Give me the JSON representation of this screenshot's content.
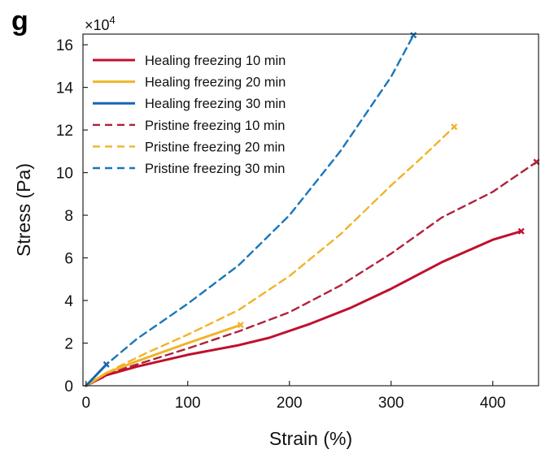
{
  "panel_label": "g",
  "chart_data": {
    "type": "line",
    "xlabel": "Strain (%)",
    "ylabel": "Stress (Pa)",
    "y_multiplier": {
      "base": "×10",
      "exponent": "4"
    },
    "xlim": [
      -3,
      445
    ],
    "ylim": [
      0,
      16.5
    ],
    "xticks": [
      0,
      100,
      200,
      300,
      400
    ],
    "yticks": [
      0,
      2,
      4,
      6,
      8,
      10,
      12,
      14,
      16
    ],
    "legend_position": "top-left",
    "grid": false,
    "series": [
      {
        "name": "Healing freezing 10 min",
        "color": "#c0102c",
        "dash": "solid",
        "x": [
          0,
          20,
          50,
          100,
          150,
          180,
          220,
          260,
          300,
          350,
          400,
          428
        ],
        "y": [
          0,
          0.5,
          0.9,
          1.45,
          1.9,
          2.25,
          2.9,
          3.65,
          4.55,
          5.8,
          6.85,
          7.25
        ],
        "end_marker": true
      },
      {
        "name": "Healing freezing 20 min",
        "color": "#f0b429",
        "dash": "solid",
        "x": [
          0,
          20,
          50,
          100,
          152
        ],
        "y": [
          0,
          0.6,
          1.15,
          2.0,
          2.85
        ],
        "end_marker": true
      },
      {
        "name": "Healing freezing 30 min",
        "color": "#1666ae",
        "dash": "solid",
        "x": [
          0,
          10,
          20
        ],
        "y": [
          0,
          0.5,
          1.0
        ],
        "end_marker": true
      },
      {
        "name": "Pristine freezing 10 min",
        "color": "#b0213a",
        "dash": "dashed",
        "x": [
          0,
          30,
          50,
          100,
          150,
          200,
          250,
          300,
          350,
          400,
          443
        ],
        "y": [
          0,
          0.7,
          1.0,
          1.75,
          2.55,
          3.45,
          4.7,
          6.2,
          7.9,
          9.1,
          10.5
        ],
        "end_marker": true
      },
      {
        "name": "Pristine freezing 20 min",
        "color": "#f0b429",
        "dash": "dashed",
        "x": [
          0,
          30,
          60,
          100,
          150,
          200,
          250,
          300,
          330,
          362
        ],
        "y": [
          0,
          0.85,
          1.55,
          2.4,
          3.55,
          5.15,
          7.1,
          9.4,
          10.7,
          12.15
        ],
        "end_marker": true
      },
      {
        "name": "Pristine freezing 30 min",
        "color": "#1a76b8",
        "dash": "dashed",
        "x": [
          0,
          20,
          50,
          100,
          150,
          200,
          250,
          300,
          322
        ],
        "y": [
          0,
          1.0,
          2.2,
          3.85,
          5.65,
          8.0,
          11.0,
          14.5,
          16.45
        ],
        "end_marker": true
      }
    ]
  }
}
